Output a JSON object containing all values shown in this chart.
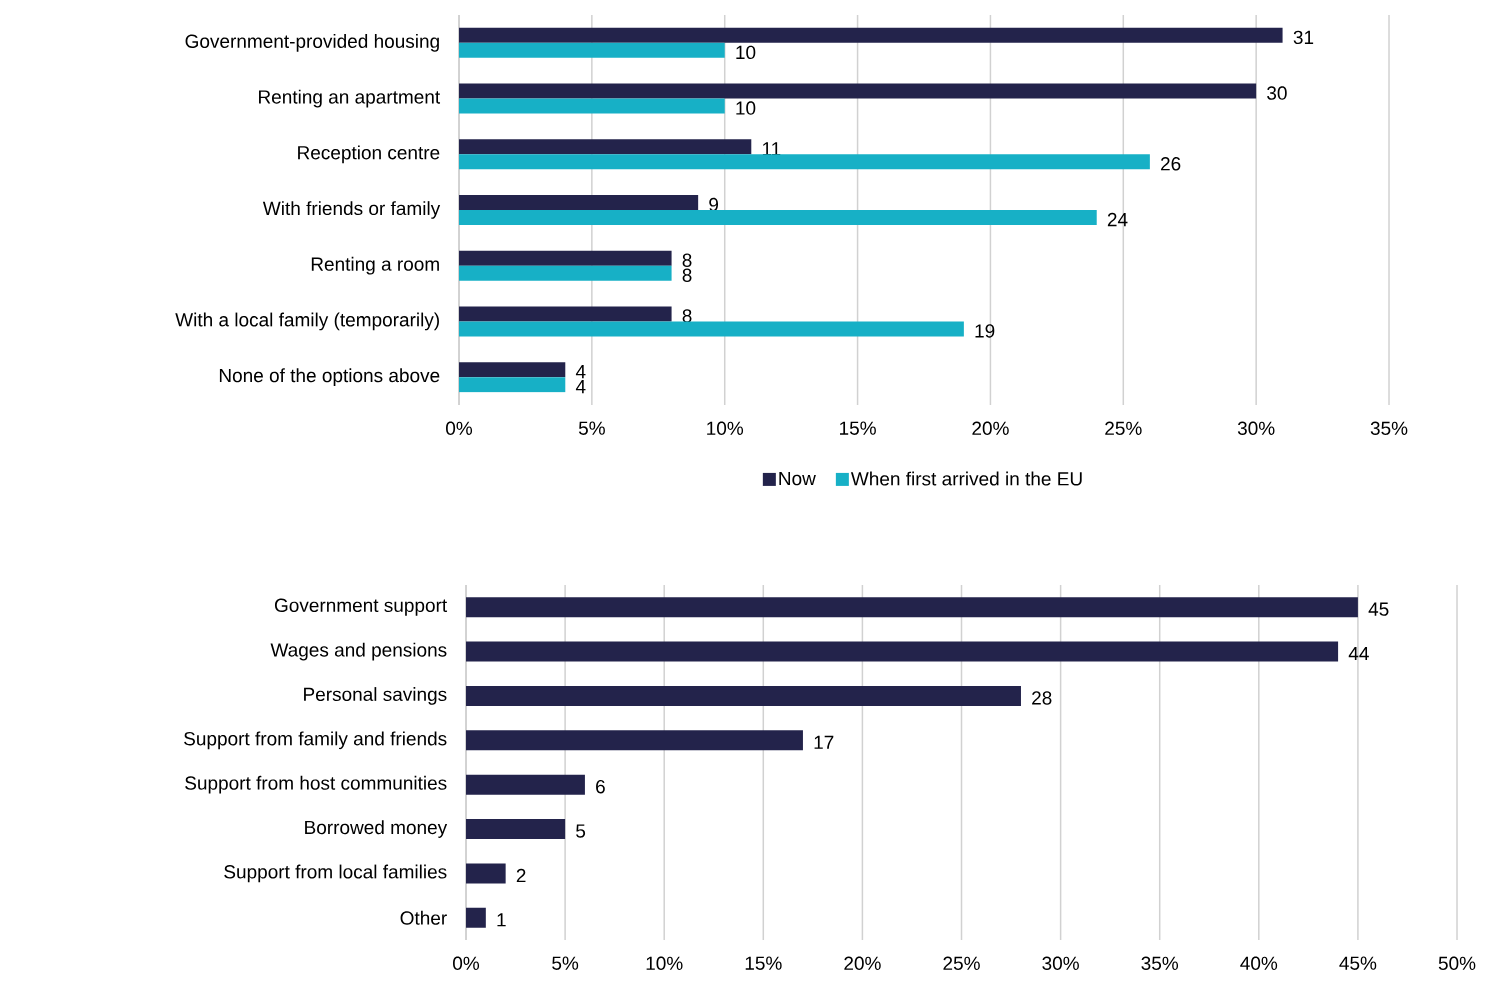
{
  "chart_data": [
    {
      "type": "bar",
      "orientation": "horizontal",
      "categories": [
        "Government-provided housing",
        "Renting an apartment",
        "Reception centre",
        "With friends or family",
        "Renting a room",
        "With a local family (temporarily)",
        "None of the options above"
      ],
      "series": [
        {
          "name": "Now",
          "color": "#23234b",
          "values": [
            31,
            30,
            11,
            9,
            8,
            8,
            4
          ]
        },
        {
          "name": "When first arrived in the EU",
          "color": "#17b0c6",
          "values": [
            10,
            10,
            26,
            24,
            8,
            19,
            4
          ]
        }
      ],
      "xlim": [
        0,
        35
      ],
      "xticks": [
        {
          "value": 0,
          "label": "0%"
        },
        {
          "value": 5,
          "label": "5%"
        },
        {
          "value": 10,
          "label": "10%"
        },
        {
          "value": 15,
          "label": "15%"
        },
        {
          "value": 20,
          "label": "20%"
        },
        {
          "value": 25,
          "label": "25%"
        },
        {
          "value": 30,
          "label": "30%"
        },
        {
          "value": 35,
          "label": "35%"
        }
      ],
      "grid": "x",
      "legend": "bottom",
      "data_labels": true
    },
    {
      "type": "bar",
      "orientation": "horizontal",
      "categories": [
        "Government support",
        "Wages and pensions",
        "Personal savings",
        "Support from family and friends",
        "Support from host communities",
        "Borrowed money",
        "Support from local families",
        "Other"
      ],
      "series": [
        {
          "color": "#23234b",
          "values": [
            45,
            44,
            28,
            17,
            6,
            5,
            2,
            1
          ]
        }
      ],
      "xlim": [
        0,
        50
      ],
      "xticks": [
        {
          "value": 0,
          "label": "0%"
        },
        {
          "value": 5,
          "label": "5%"
        },
        {
          "value": 10,
          "label": "10%"
        },
        {
          "value": 15,
          "label": "15%"
        },
        {
          "value": 20,
          "label": "20%"
        },
        {
          "value": 25,
          "label": "25%"
        },
        {
          "value": 30,
          "label": "30%"
        },
        {
          "value": 35,
          "label": "35%"
        },
        {
          "value": 40,
          "label": "40%"
        },
        {
          "value": 45,
          "label": "45%"
        },
        {
          "value": 50,
          "label": "50%"
        }
      ],
      "grid": "x",
      "data_labels": true
    }
  ]
}
